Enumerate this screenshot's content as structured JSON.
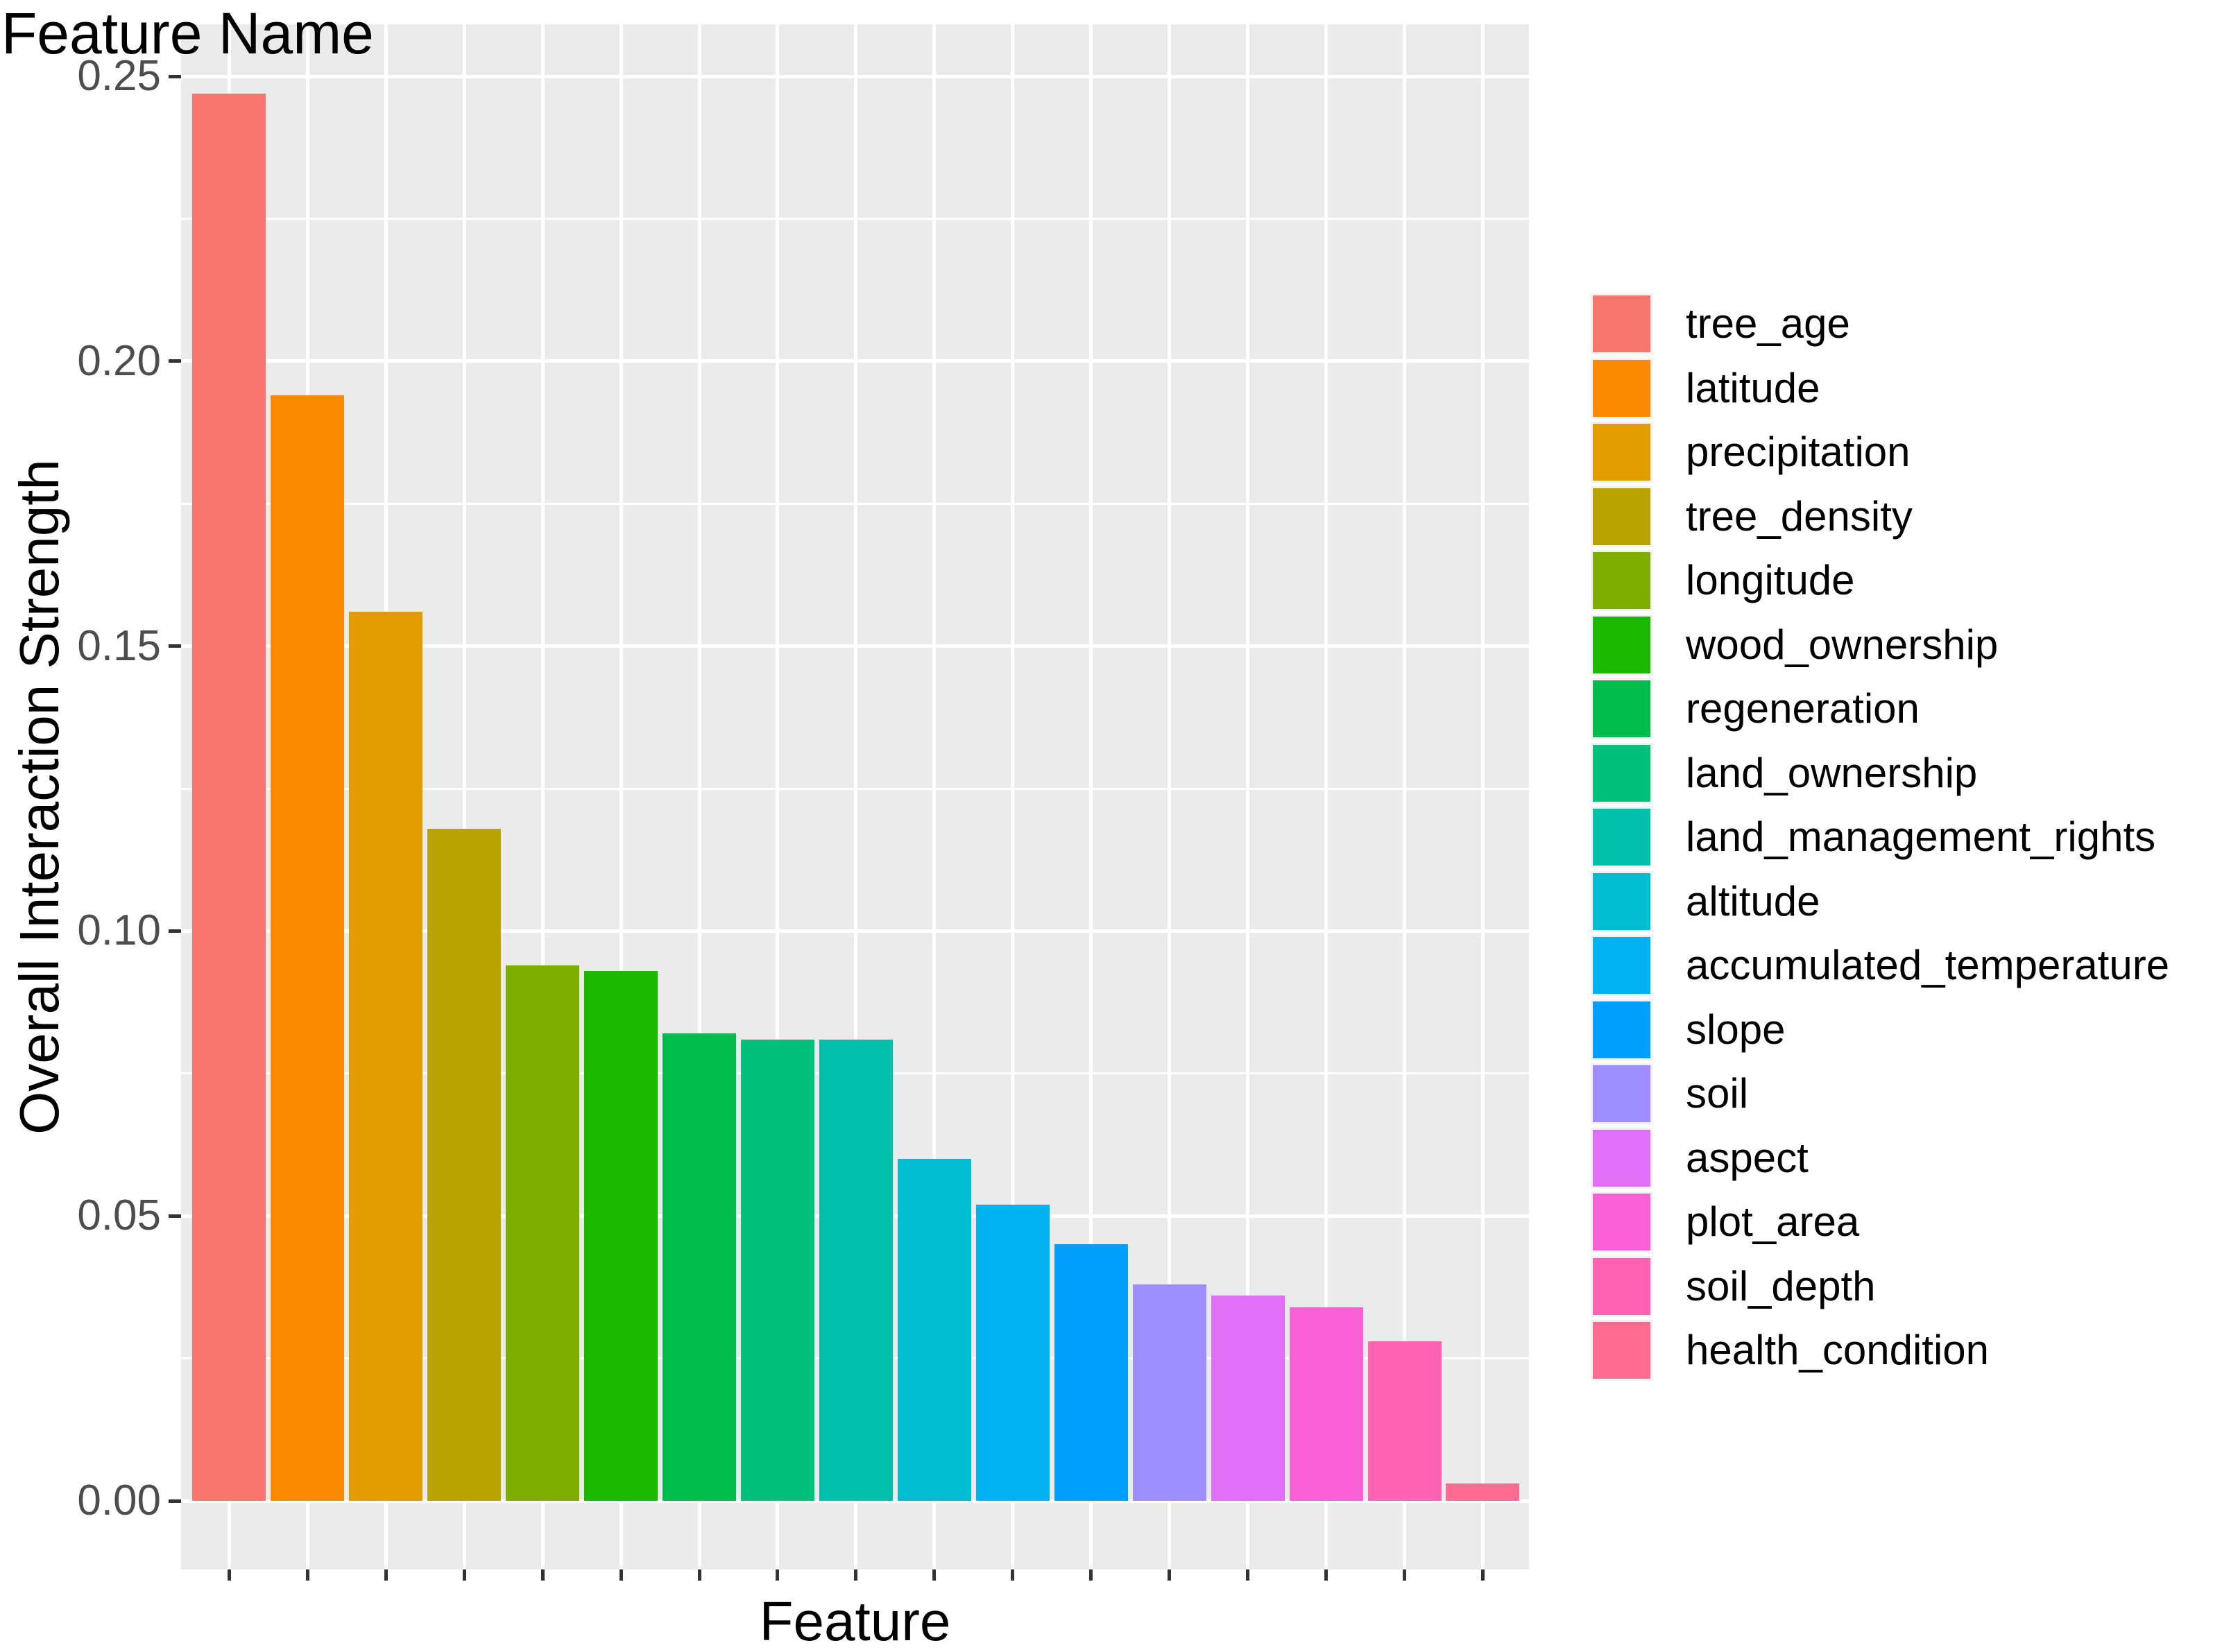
{
  "chart_data": {
    "type": "bar",
    "title": "",
    "xlabel": "Feature",
    "ylabel": "Overall Interaction Strength",
    "legend_title": "Feature Name",
    "legend_position": "right",
    "categories": [
      "tree_age",
      "latitude",
      "precipitation",
      "tree_density",
      "longitude",
      "wood_ownership",
      "regeneration",
      "land_ownership",
      "land_management_rights",
      "altitude",
      "accumulated_temperature",
      "slope",
      "soil",
      "aspect",
      "plot_area",
      "soil_depth",
      "health_condition"
    ],
    "values": [
      0.247,
      0.194,
      0.156,
      0.118,
      0.094,
      0.093,
      0.082,
      0.081,
      0.081,
      0.06,
      0.052,
      0.045,
      0.038,
      0.036,
      0.034,
      0.028,
      0.003
    ],
    "colors": [
      "#F8766D",
      "#FB8A00",
      "#E09C00",
      "#B8A300",
      "#7EAD00",
      "#1CB700",
      "#00BB4E",
      "#00C07B",
      "#00C0A9",
      "#00BDD2",
      "#00B2F0",
      "#00A0FF",
      "#9E8DFF",
      "#E070F8",
      "#FB61D7",
      "#FF63B2",
      "#FF6B91"
    ],
    "ylim": [
      0,
      0.25
    ],
    "yticks": [
      0.0,
      0.05,
      0.1,
      0.15,
      0.2,
      0.25
    ],
    "ytick_labels": [
      "0.00",
      "0.05",
      "0.10",
      "0.15",
      "0.20",
      "0.25"
    ],
    "minor_yticks": [
      0.025,
      0.075,
      0.125,
      0.175,
      0.225
    ],
    "xtick_labels": [],
    "grid": "horizontal major+minor and vertical major at category centers",
    "panel_background": "#EBEBEB",
    "grid_color": "#FFFFFF",
    "axis_tick_color": "#333333",
    "tick_label_color": "#4D4D4D",
    "text_color": "#000000",
    "figure_background": "#FFFFFF",
    "legend_key_background": "#F2F2F2"
  }
}
